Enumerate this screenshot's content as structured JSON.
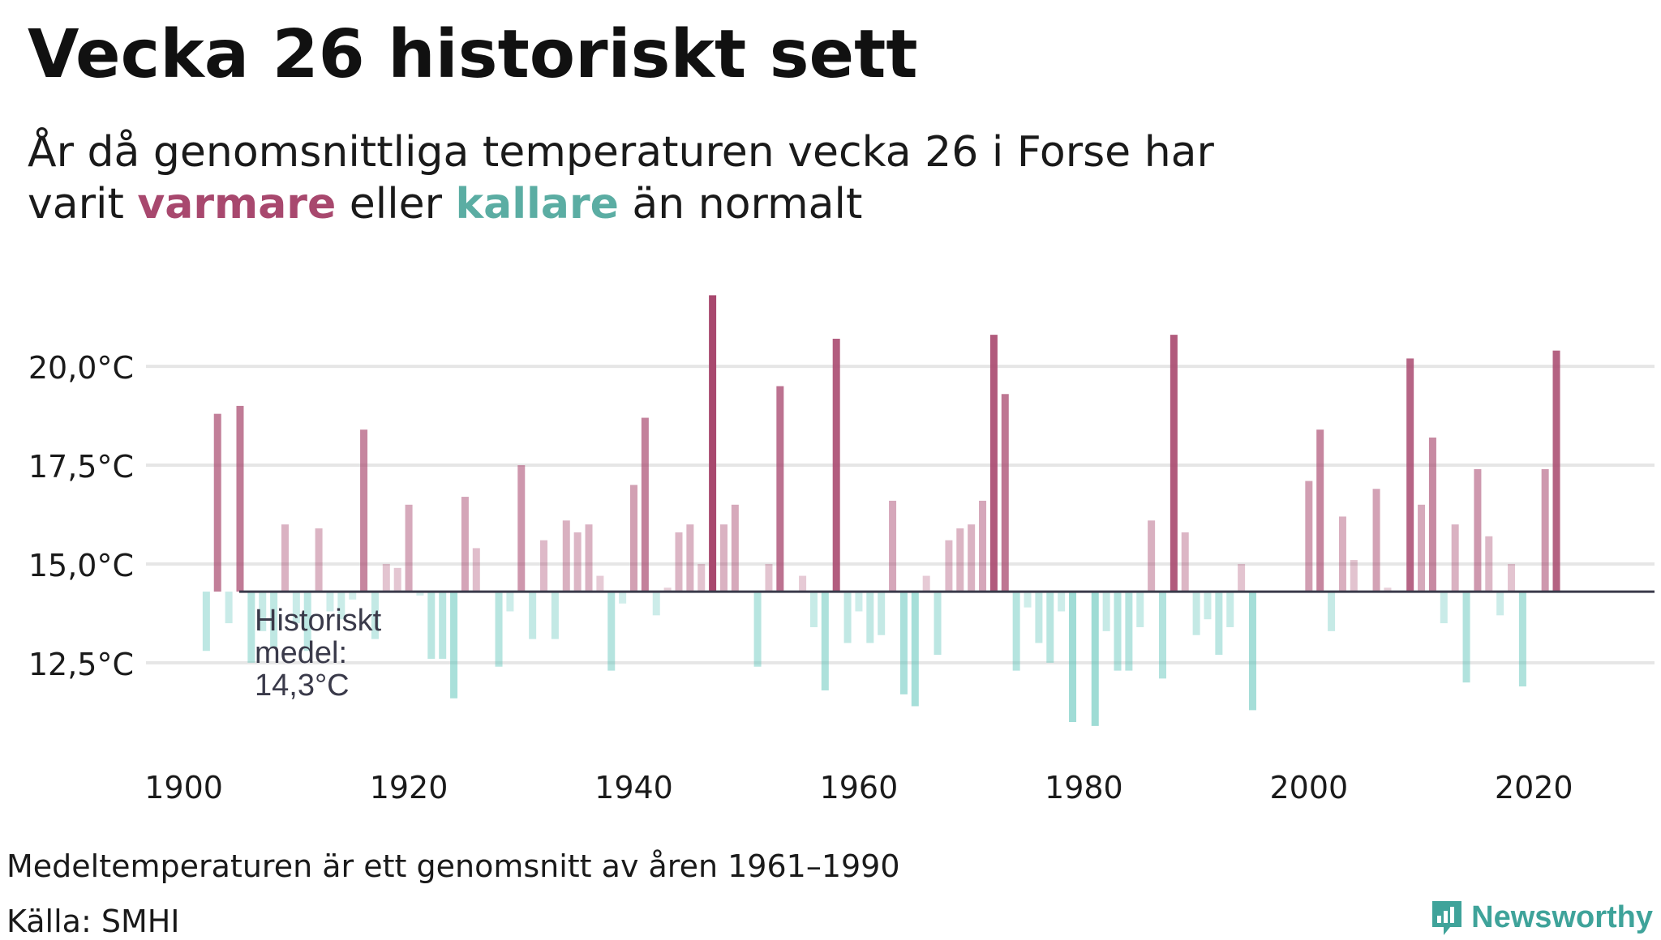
{
  "title": "Vecka 26 historiskt sett",
  "subtitle": {
    "line1": "År då genomsnittliga temperaturen vecka 26 i Forse har",
    "line2_prefix": "varit ",
    "warm_word": "varmare",
    "middle": " eller ",
    "cold_word": "kallare",
    "line2_suffix": " än normalt"
  },
  "footnote": "Medeltemperaturen är ett genomsnitt av åren 1961–1990",
  "source": "Källa: SMHI",
  "brand": {
    "name": "Newsworthy",
    "icon": "newsworthy-logo-icon"
  },
  "colors": {
    "warm": "#a8486e",
    "cold": "#5bc3b8",
    "baseline": "#3a3a4a",
    "grid": "#e6e6e6",
    "brand": "#3fa39a"
  },
  "chart_data": {
    "type": "bar",
    "title": "Vecka 26 historiskt sett",
    "xlabel": "",
    "ylabel": "",
    "baseline": 14.3,
    "baseline_label": [
      "Historiskt",
      "medel:",
      "14,3°C"
    ],
    "xlim": [
      1897,
      2030
    ],
    "ylim": [
      10.2,
      22.3
    ],
    "yticks": [
      12.5,
      15.0,
      17.5,
      20.0
    ],
    "ytick_labels": [
      "12,5°C",
      "15,0°C",
      "17,5°C",
      "20,0°C"
    ],
    "xticks": [
      1900,
      1920,
      1940,
      1960,
      1980,
      2000,
      2020
    ],
    "xtick_labels": [
      "1900",
      "1920",
      "1940",
      "1960",
      "1980",
      "2000",
      "2020"
    ],
    "grid": true,
    "years": [
      1902,
      1903,
      1904,
      1905,
      1906,
      1907,
      1908,
      1909,
      1910,
      1911,
      1912,
      1913,
      1914,
      1915,
      1916,
      1917,
      1918,
      1919,
      1920,
      1921,
      1922,
      1923,
      1924,
      1925,
      1926,
      1927,
      1928,
      1929,
      1930,
      1931,
      1932,
      1933,
      1934,
      1935,
      1936,
      1937,
      1938,
      1939,
      1940,
      1941,
      1942,
      1943,
      1944,
      1945,
      1946,
      1947,
      1948,
      1949,
      1950,
      1951,
      1952,
      1953,
      1954,
      1955,
      1956,
      1957,
      1958,
      1959,
      1960,
      1961,
      1962,
      1963,
      1964,
      1965,
      1966,
      1967,
      1968,
      1969,
      1970,
      1971,
      1972,
      1973,
      1974,
      1975,
      1976,
      1977,
      1978,
      1979,
      1980,
      1981,
      1982,
      1983,
      1984,
      1985,
      1986,
      1987,
      1988,
      1989,
      1990,
      1991,
      1992,
      1993,
      1994,
      1995,
      1996,
      1997,
      1998,
      1999,
      2000,
      2001,
      2002,
      2003,
      2004,
      2005,
      2006,
      2007,
      2008,
      2009,
      2010,
      2011,
      2012,
      2013,
      2014,
      2015,
      2016,
      2017,
      2018,
      2019,
      2020,
      2021,
      2022
    ],
    "values": [
      12.8,
      18.8,
      13.5,
      19.0,
      12.5,
      13.3,
      12.9,
      16.0,
      13.5,
      12.8,
      15.9,
      13.8,
      13.6,
      14.1,
      18.4,
      13.1,
      15.0,
      14.9,
      16.5,
      14.2,
      12.6,
      12.6,
      11.6,
      16.7,
      15.4,
      14.3,
      12.4,
      13.8,
      17.5,
      13.1,
      15.6,
      13.1,
      16.1,
      15.8,
      16.0,
      14.7,
      12.3,
      14.0,
      17.0,
      18.7,
      13.7,
      14.4,
      15.8,
      16.0,
      15.0,
      21.8,
      16.0,
      16.5,
      14.3,
      12.4,
      15.0,
      19.5,
      14.3,
      14.7,
      13.4,
      11.8,
      20.7,
      13.0,
      13.8,
      13.0,
      13.2,
      16.6,
      11.7,
      11.4,
      14.7,
      12.7,
      15.6,
      15.9,
      16.0,
      16.6,
      20.8,
      19.3,
      12.3,
      13.9,
      13.0,
      12.5,
      13.8,
      11.0,
      14.3,
      10.9,
      13.3,
      12.3,
      12.3,
      13.4,
      16.1,
      12.1,
      20.8,
      15.8,
      13.2,
      13.6,
      12.7,
      13.4,
      15.0,
      11.3,
      14.3,
      14.3,
      14.3,
      14.3,
      17.1,
      18.4,
      13.3,
      16.2,
      15.1,
      14.3,
      16.9,
      14.4,
      14.3,
      20.2,
      16.5,
      18.2,
      13.5,
      16.0,
      12.0,
      17.4,
      15.7,
      13.7,
      15.0,
      11.9,
      14.3,
      17.4,
      20.4
    ]
  }
}
